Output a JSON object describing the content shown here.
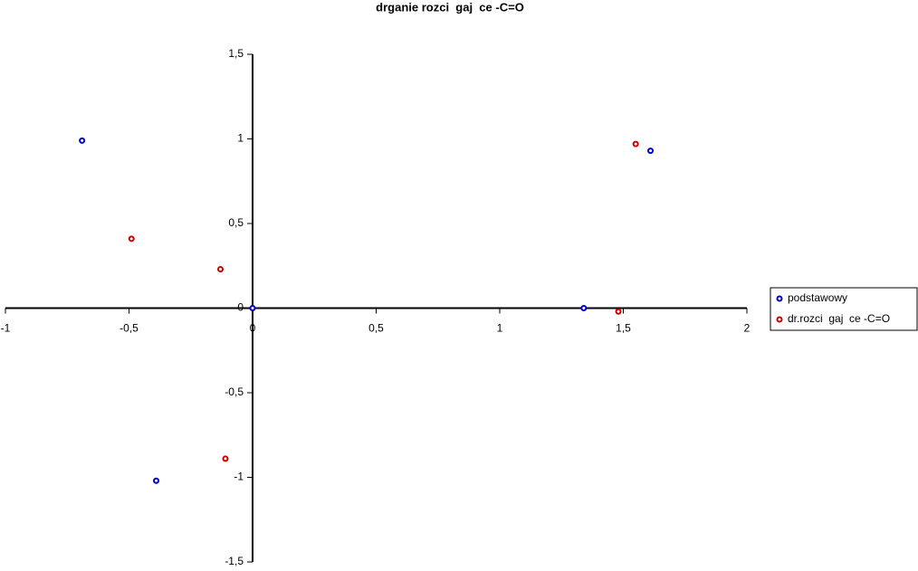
{
  "chart_data": {
    "type": "scatter",
    "title": "drganie rozci  gaj  ce -C=O",
    "series": [
      {
        "name": "podstawowy",
        "color": "#0000cc",
        "x": [
          -0.69,
          -0.39,
          0,
          1.34,
          1.61
        ],
        "values": [
          0.99,
          -1.02,
          0,
          0,
          0.93
        ]
      },
      {
        "name": "dr.rozci  gaj  ce -C=O",
        "color": "#cc0000",
        "x": [
          -0.49,
          -0.13,
          -0.11,
          1.48,
          1.55
        ],
        "values": [
          0.41,
          0.23,
          -0.89,
          -0.02,
          0.97
        ]
      }
    ],
    "xlim": [
      -1,
      2
    ],
    "xticks": [
      -1,
      {
        "value": -0.5,
        "label": "-0,5"
      },
      0,
      {
        "value": 0.5,
        "label": "0,5"
      },
      1,
      {
        "value": 1.5,
        "label": "1,5"
      },
      2
    ],
    "ylim": [
      -1.5,
      1.5
    ],
    "yticks": [
      {
        "value": -1.5,
        "label": "-1,5"
      },
      -1,
      {
        "value": -0.5,
        "label": "-0,5"
      },
      0,
      {
        "value": 0.5,
        "label": "0,5"
      },
      1,
      {
        "value": 1.5,
        "label": "1,5"
      }
    ],
    "legend": "right"
  }
}
